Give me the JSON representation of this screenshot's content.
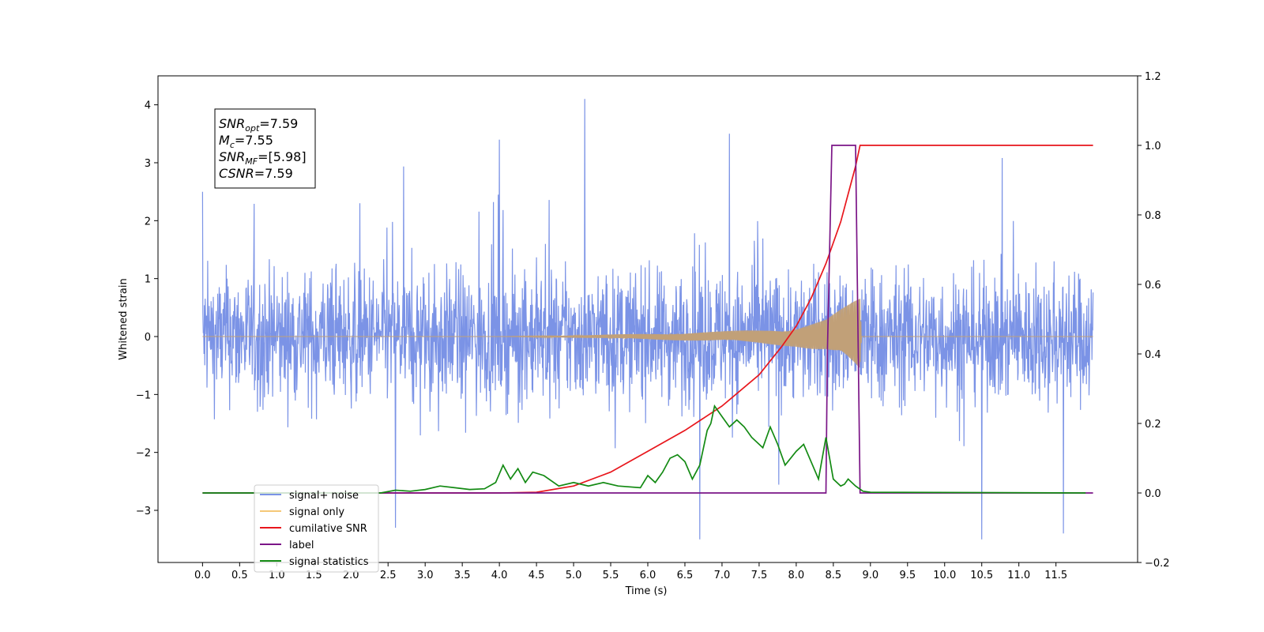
{
  "chart_data": {
    "type": "line",
    "xlabel": "Time (s)",
    "ylabel": "Whitened strain",
    "xlim": [
      -0.6,
      12.6
    ],
    "ylim": [
      -3.9,
      4.5
    ],
    "y2lim": [
      -0.2,
      1.2
    ],
    "x_ticks": [
      "0.0",
      "0.5",
      "1.0",
      "1.5",
      "2.0",
      "2.5",
      "3.0",
      "3.5",
      "4.0",
      "4.5",
      "5.0",
      "5.5",
      "6.0",
      "6.5",
      "7.0",
      "7.5",
      "8.0",
      "8.5",
      "9.0",
      "9.5",
      "10.0",
      "10.5",
      "11.0",
      "11.5"
    ],
    "y_ticks": [
      "−3",
      "−2",
      "−1",
      "0",
      "1",
      "2",
      "3",
      "4"
    ],
    "y2_ticks": [
      "−0.2",
      "0.0",
      "0.2",
      "0.4",
      "0.6",
      "0.8",
      "1.0",
      "1.2"
    ],
    "legend_position": "lower-left",
    "annotation": {
      "lines": [
        {
          "var": "SNR",
          "sub": "opt",
          "value": "=7.59"
        },
        {
          "var": "M",
          "sub": "c",
          "value": "=7.55"
        },
        {
          "var": "SNR",
          "sub": "MF",
          "value": "=[5.98]"
        },
        {
          "var": "CSNR",
          "sub": "",
          "value": "=7.59"
        }
      ]
    },
    "series": [
      {
        "name": "signal+ noise",
        "color": "#7b93e6",
        "axis": "left",
        "kind": "noise",
        "x_range": [
          0.0,
          12.0
        ],
        "envelope": 1.6,
        "peak_max": 4.1,
        "peak_min": -3.5,
        "peaks": [
          [
            0.0,
            2.5
          ],
          [
            5.15,
            4.1
          ],
          [
            4.0,
            3.4
          ],
          [
            7.1,
            3.5
          ],
          [
            10.5,
            -3.5
          ],
          [
            11.6,
            -3.4
          ],
          [
            6.7,
            -3.5
          ],
          [
            2.6,
            -3.3
          ]
        ]
      },
      {
        "name": "signal only",
        "color": "#c1a078",
        "axis": "left",
        "kind": "chirp",
        "amplitude": [
          [
            0.0,
            0.0
          ],
          [
            4.0,
            0.0
          ],
          [
            5.0,
            0.02
          ],
          [
            6.0,
            0.05
          ],
          [
            7.0,
            0.09
          ],
          [
            7.5,
            0.12
          ],
          [
            8.0,
            0.18
          ],
          [
            8.4,
            0.3
          ],
          [
            8.7,
            0.55
          ],
          [
            8.86,
            0.7
          ],
          [
            8.88,
            0.0
          ],
          [
            12.0,
            0.0
          ]
        ]
      },
      {
        "name": "cumilative SNR",
        "color": "#e8161c",
        "axis": "right",
        "x": [
          0.0,
          4.0,
          4.5,
          5.0,
          5.5,
          6.0,
          6.5,
          7.0,
          7.5,
          7.8,
          8.0,
          8.2,
          8.4,
          8.6,
          8.7,
          8.8,
          8.86,
          8.9,
          12.0
        ],
        "y": [
          0.0,
          0.0,
          0.002,
          0.02,
          0.06,
          0.12,
          0.18,
          0.25,
          0.34,
          0.42,
          0.48,
          0.56,
          0.66,
          0.78,
          0.86,
          0.94,
          1.0,
          1.0,
          1.0
        ]
      },
      {
        "name": "label",
        "color": "#7b1587",
        "axis": "right",
        "x": [
          0.0,
          8.4,
          8.42,
          8.48,
          8.8,
          8.86,
          8.9,
          12.0
        ],
        "y": [
          0.0,
          0.0,
          0.4,
          1.0,
          1.0,
          0.0,
          0.0,
          0.0
        ]
      },
      {
        "name": "signal statistics",
        "color": "#138a13",
        "axis": "right",
        "x": [
          0.0,
          2.4,
          2.6,
          2.8,
          3.0,
          3.2,
          3.4,
          3.6,
          3.8,
          3.95,
          4.05,
          4.15,
          4.25,
          4.35,
          4.45,
          4.6,
          4.8,
          5.0,
          5.2,
          5.4,
          5.6,
          5.9,
          6.0,
          6.1,
          6.2,
          6.3,
          6.4,
          6.5,
          6.6,
          6.7,
          6.8,
          6.85,
          6.9,
          7.0,
          7.1,
          7.2,
          7.3,
          7.4,
          7.55,
          7.65,
          7.75,
          7.85,
          8.0,
          8.1,
          8.2,
          8.3,
          8.4,
          8.5,
          8.6,
          8.65,
          8.7,
          8.8,
          8.9,
          9.0,
          11.9
        ],
        "y": [
          0.0,
          0.0,
          0.008,
          0.005,
          0.01,
          0.02,
          0.015,
          0.01,
          0.012,
          0.03,
          0.08,
          0.04,
          0.07,
          0.03,
          0.06,
          0.05,
          0.02,
          0.03,
          0.02,
          0.03,
          0.02,
          0.015,
          0.05,
          0.03,
          0.06,
          0.1,
          0.11,
          0.09,
          0.04,
          0.08,
          0.18,
          0.2,
          0.25,
          0.22,
          0.19,
          0.21,
          0.19,
          0.16,
          0.13,
          0.19,
          0.14,
          0.08,
          0.12,
          0.14,
          0.09,
          0.04,
          0.16,
          0.04,
          0.02,
          0.025,
          0.04,
          0.02,
          0.005,
          0.002,
          0.0
        ]
      }
    ]
  },
  "legend": {
    "items": [
      {
        "label": "signal+ noise",
        "color": "#7b93e6"
      },
      {
        "label": "signal only",
        "color": "#f5c878"
      },
      {
        "label": "cumilative SNR",
        "color": "#e8161c"
      },
      {
        "label": "label",
        "color": "#7b1587"
      },
      {
        "label": "signal statistics",
        "color": "#138a13"
      }
    ]
  }
}
